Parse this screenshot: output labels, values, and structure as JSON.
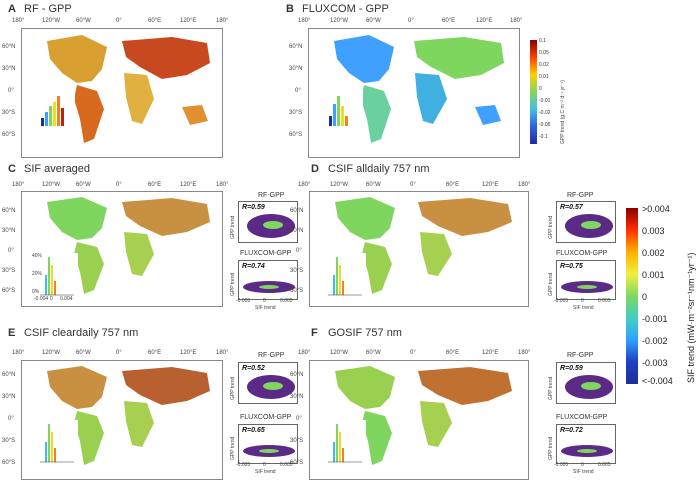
{
  "panels": {
    "A": {
      "letter": "A",
      "title": "RF - GPP"
    },
    "B": {
      "letter": "B",
      "title": "FLUXCOM - GPP"
    },
    "C": {
      "letter": "C",
      "title": "SIF averaged",
      "r_rf": "R=0.59",
      "r_fx": "R=0.74"
    },
    "D": {
      "letter": "D",
      "title": "CSIF alldaily 757 nm",
      "r_rf": "R=0.57",
      "r_fx": "R=0.75"
    },
    "E": {
      "letter": "E",
      "title": "CSIF cleardaily 757 nm",
      "r_rf": "R=0.52",
      "r_fx": "R=0.65"
    },
    "F": {
      "letter": "F",
      "title": "GOSIF 757 nm",
      "r_rf": "R=0.59",
      "r_fx": "R=0.72"
    }
  },
  "lon_ticks": [
    "180°",
    "120°W",
    "60°W",
    "0°",
    "60°E",
    "120°E",
    "180°"
  ],
  "lat_ticks": [
    "60°N",
    "30°N",
    "0°",
    "30°S",
    "60°S"
  ],
  "scatter": {
    "rf_title": "RF-GPP",
    "fx_title": "FLUXCOM-GPP",
    "ylabel": "GPP trend",
    "xlabel": "SIF trend",
    "x_ticks": [
      "-0.005",
      "0",
      "0.005"
    ]
  },
  "hist": {
    "y_ticks": [
      "40%",
      "20%",
      "0%"
    ],
    "x_ticks": [
      "-0.004",
      "0",
      "0.004"
    ]
  },
  "gpp_colorbar": {
    "ticks": [
      "0.1",
      "0.05",
      "0.02",
      "0.01",
      "0",
      "-0.01",
      "-0.02",
      "-0.05",
      "-0.1"
    ],
    "label": "GPP trend (g C m⁻² d⁻¹ yr⁻¹)"
  },
  "sif_colorbar": {
    "ticks": [
      ">0.004",
      "0.003",
      "0.002",
      "0.001",
      "0",
      "-0.001",
      "-0.002",
      "-0.003",
      "<-0.004"
    ],
    "label": "SIF trend (mW·m⁻²sr⁻¹nm⁻¹yr⁻¹)"
  },
  "colors": {
    "high": "#8b0000",
    "mid": "#7fd65f",
    "low": "#1d2f9c",
    "scatter": "#5b2a86"
  }
}
